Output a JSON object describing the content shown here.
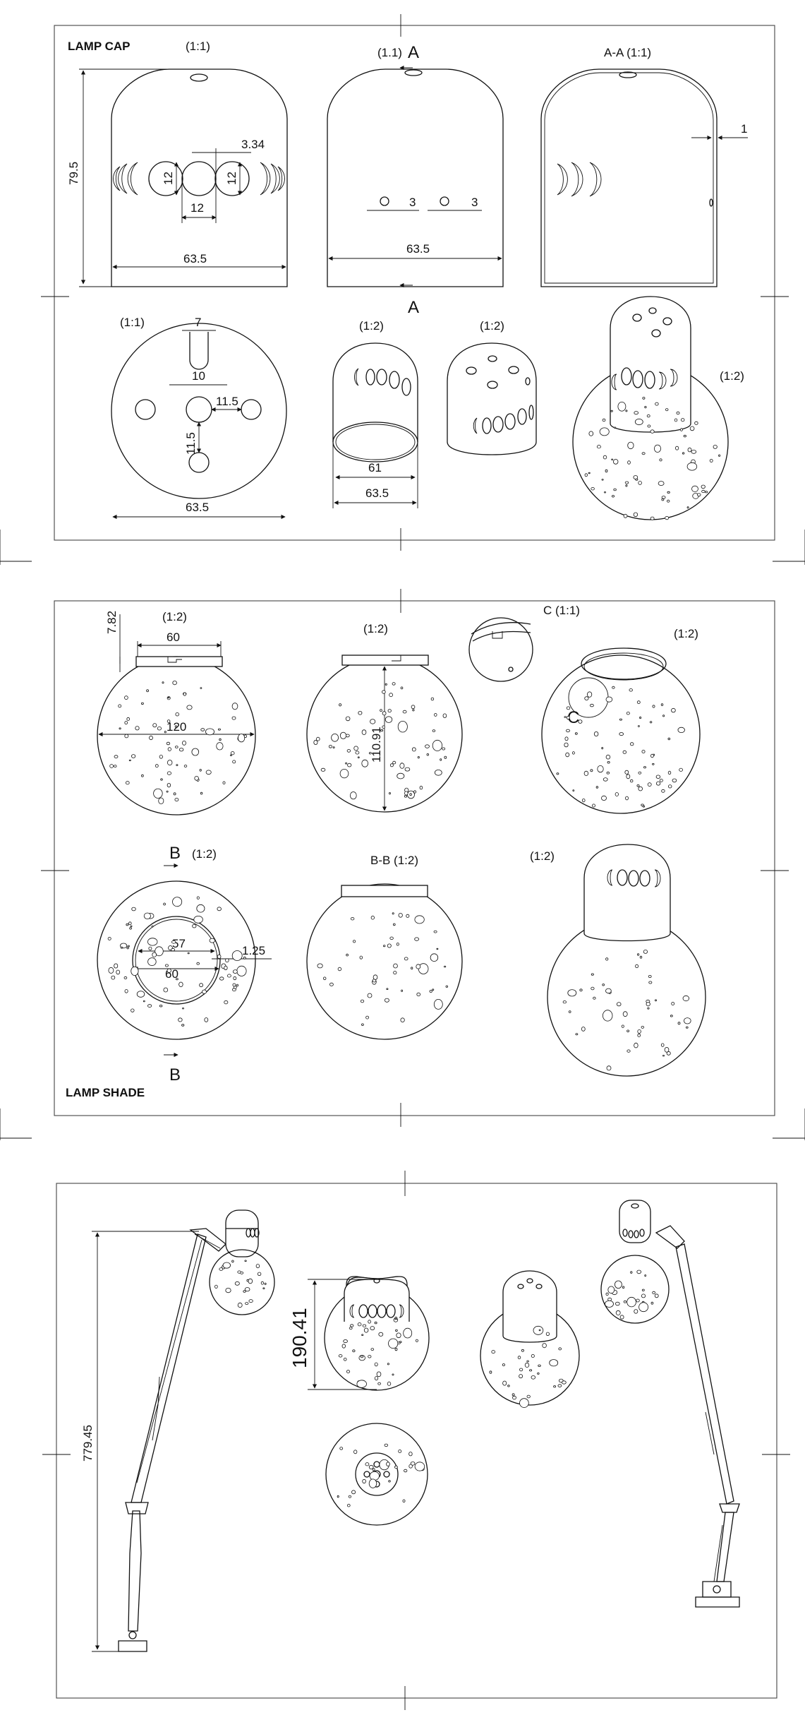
{
  "sheet1": {
    "title": "LAMP CAP",
    "views": {
      "front": {
        "scale": "(1:1)",
        "dims": {
          "height": "79.5",
          "width": "63.5",
          "hole_d": "12",
          "hole_gap": "3.34",
          "hole_h": "12",
          "hole_h2": "12"
        }
      },
      "section_view": {
        "scale": "(1.1)",
        "cut_label_top": "A",
        "cut_label_bottom": "A",
        "dims": {
          "spacing_a": "3",
          "spacing_b": "3",
          "width": "63.5"
        }
      },
      "section_aa": {
        "label": "A-A (1:1)",
        "dims": {
          "wall": "1"
        }
      },
      "top": {
        "scale": "(1:1)",
        "dims": {
          "slot": "7",
          "center": "10",
          "offset": "11.5",
          "offset2": "11.5",
          "width": "63.5"
        }
      },
      "half_scale_a": {
        "scale": "(1:2)",
        "dims": {
          "inner": "61",
          "outer": "63.5"
        }
      },
      "half_scale_b": {
        "scale": "(1:2)"
      },
      "iso": {
        "scale": "(1:2)"
      }
    }
  },
  "sheet2": {
    "title": "LAMP SHADE",
    "views": {
      "front": {
        "scale": "(1:2)",
        "dims": {
          "neck_h": "7.82",
          "neck_w": "60",
          "diameter": "120"
        }
      },
      "side": {
        "scale": "(1:2)",
        "dims": {
          "height": "110.91"
        }
      },
      "detail": {
        "label": "C (1:1)",
        "marker": "C"
      },
      "iso": {
        "scale": "(1:2)"
      },
      "top": {
        "scale": "(1:2)",
        "cut_label_top": "B",
        "cut_label_bottom": "B",
        "dims": {
          "inner": "57",
          "outer": "60",
          "wall": "1.25"
        }
      },
      "section_bb": {
        "label": "B-B (1:2)"
      },
      "assembly": {
        "scale": "(1:2)"
      }
    }
  },
  "sheet3": {
    "dims": {
      "overall_height": "779.45",
      "head_height": "190.41"
    }
  }
}
